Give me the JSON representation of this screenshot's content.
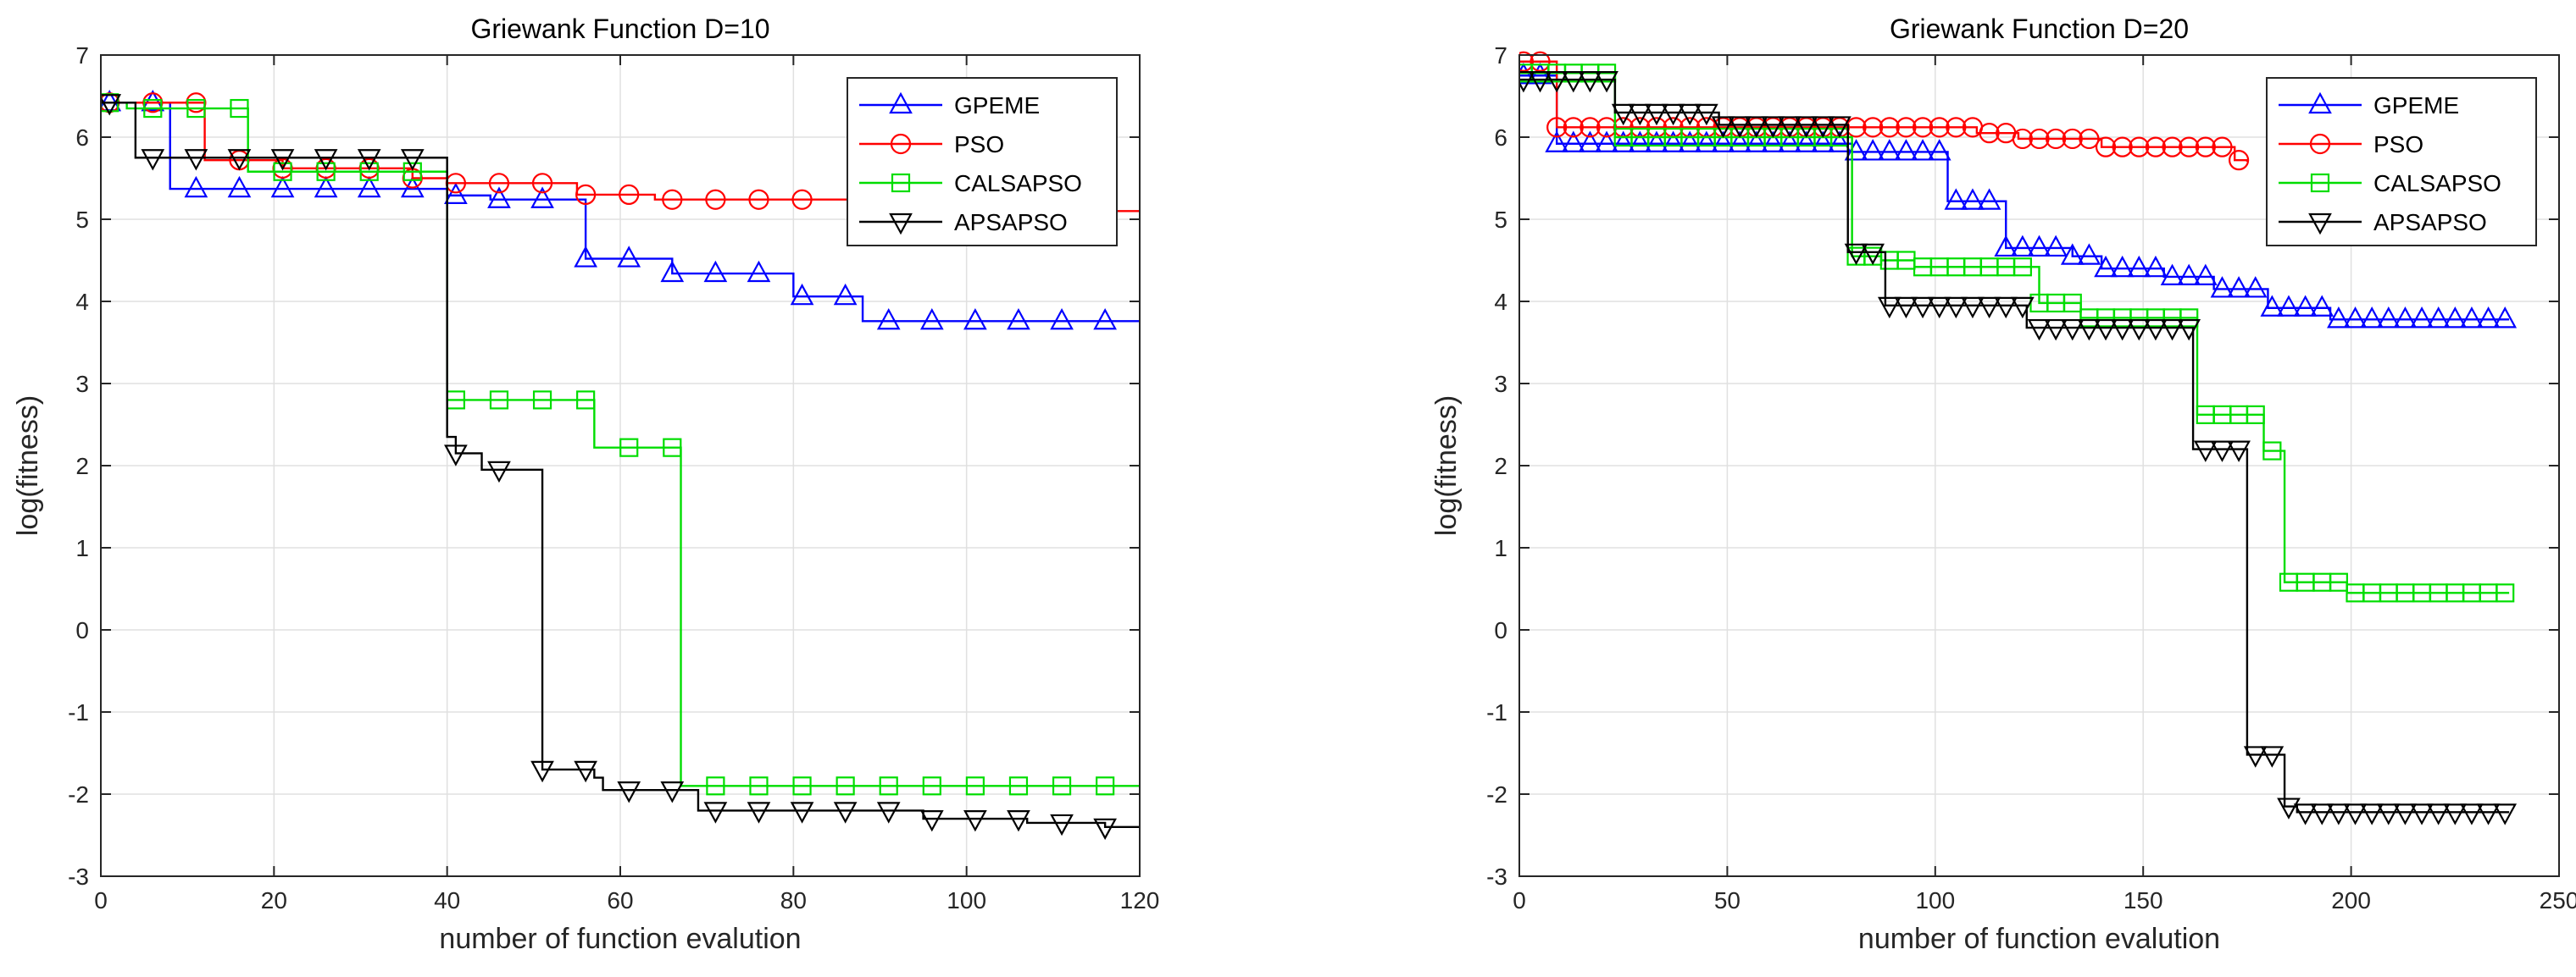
{
  "chart_data": [
    {
      "type": "line",
      "title": "Griewank Function D=10",
      "xlabel": "number of function evalution",
      "ylabel": "log(fitness)",
      "xlim": [
        0,
        120
      ],
      "ylim": [
        -3,
        7
      ],
      "xticks": [
        0,
        20,
        40,
        60,
        80,
        100,
        120
      ],
      "yticks": [
        -3,
        -2,
        -1,
        0,
        1,
        2,
        3,
        4,
        5,
        6,
        7
      ],
      "grid": true,
      "legend": "top-right",
      "series": [
        {
          "name": "GPEME",
          "color": "#0000ff",
          "marker": "triangle-up",
          "steps": [
            [
              0,
              6.42
            ],
            [
              8,
              5.37
            ],
            [
              40,
              5.29
            ],
            [
              45,
              5.24
            ],
            [
              56,
              4.52
            ],
            [
              66,
              4.34
            ],
            [
              80,
              4.06
            ],
            [
              88,
              3.76
            ],
            [
              120,
              3.76
            ]
          ],
          "markers_x": [
            1,
            6,
            11,
            16,
            21,
            26,
            31,
            36,
            41,
            46,
            51,
            56,
            61,
            66,
            71,
            76,
            81,
            86,
            91,
            96,
            101,
            106,
            111,
            116
          ]
        },
        {
          "name": "PSO",
          "color": "#ff0000",
          "marker": "circle",
          "steps": [
            [
              0,
              6.42
            ],
            [
              12,
              5.72
            ],
            [
              21,
              5.62
            ],
            [
              36,
              5.5
            ],
            [
              40,
              5.44
            ],
            [
              55,
              5.3
            ],
            [
              64,
              5.24
            ],
            [
              112,
              5.1
            ],
            [
              120,
              5.1
            ]
          ],
          "markers_x": [
            1,
            6,
            11,
            16,
            21,
            26,
            31,
            36,
            41,
            46,
            51,
            56,
            61,
            66,
            71,
            76,
            81
          ]
        },
        {
          "name": "CALSAPSO",
          "color": "#00dd00",
          "marker": "square",
          "steps": [
            [
              0,
              6.42
            ],
            [
              3,
              6.35
            ],
            [
              17,
              5.58
            ],
            [
              40,
              2.8
            ],
            [
              57,
              2.22
            ],
            [
              67,
              -1.9
            ],
            [
              120,
              -1.9
            ]
          ],
          "markers_x": [
            1,
            6,
            11,
            16,
            21,
            26,
            31,
            36,
            41,
            46,
            51,
            56,
            61,
            66,
            71,
            76,
            81,
            86,
            91,
            96,
            101,
            106,
            111,
            116
          ]
        },
        {
          "name": "APSAPSO",
          "color": "#000000",
          "marker": "triangle-down",
          "steps": [
            [
              0,
              6.42
            ],
            [
              4,
              5.75
            ],
            [
              40,
              2.35
            ],
            [
              41,
              2.15
            ],
            [
              44,
              1.95
            ],
            [
              51,
              -1.7
            ],
            [
              57,
              -1.8
            ],
            [
              58,
              -1.95
            ],
            [
              69,
              -2.2
            ],
            [
              95,
              -2.3
            ],
            [
              107,
              -2.35
            ],
            [
              116,
              -2.4
            ],
            [
              120,
              -2.4
            ]
          ],
          "markers_x": [
            1,
            6,
            11,
            16,
            21,
            26,
            31,
            36,
            41,
            46,
            51,
            56,
            61,
            66,
            71,
            76,
            81,
            86,
            91,
            96,
            101,
            106,
            111,
            116
          ]
        }
      ]
    },
    {
      "type": "line",
      "title": "Griewank Function D=20",
      "xlabel": "number of function evalution",
      "ylabel": "log(fitness)",
      "xlim": [
        0,
        250
      ],
      "ylim": [
        -3,
        7
      ],
      "xticks": [
        0,
        50,
        100,
        150,
        200,
        250
      ],
      "yticks": [
        -3,
        -2,
        -1,
        0,
        1,
        2,
        3,
        4,
        5,
        6,
        7
      ],
      "grid": true,
      "legend": "top-right",
      "series": [
        {
          "name": "GPEME",
          "color": "#0000ff",
          "marker": "triangle-up",
          "steps": [
            [
              0,
              6.75
            ],
            [
              9,
              5.92
            ],
            [
              80,
              5.82
            ],
            [
              103,
              5.22
            ],
            [
              117,
              4.65
            ],
            [
              133,
              4.55
            ],
            [
              140,
              4.4
            ],
            [
              155,
              4.3
            ],
            [
              167,
              4.15
            ],
            [
              180,
              3.92
            ],
            [
              195,
              3.78
            ],
            [
              238,
              3.78
            ]
          ],
          "markers_x": [
            1,
            5,
            9,
            13,
            17,
            21,
            25,
            29,
            33,
            37,
            41,
            45,
            49,
            53,
            57,
            61,
            65,
            69,
            73,
            77,
            81,
            85,
            89,
            93,
            97,
            101,
            105,
            109,
            113,
            117,
            121,
            125,
            129,
            133,
            137,
            141,
            145,
            149,
            153,
            157,
            161,
            165,
            169,
            173,
            177,
            181,
            185,
            189,
            193,
            197,
            201,
            205,
            209,
            213,
            217,
            221,
            225,
            229,
            233,
            237
          ]
        },
        {
          "name": "PSO",
          "color": "#ff0000",
          "marker": "circle",
          "steps": [
            [
              0,
              6.92
            ],
            [
              9,
              6.12
            ],
            [
              90,
              6.12
            ],
            [
              110,
              6.05
            ],
            [
              120,
              5.98
            ],
            [
              140,
              5.88
            ],
            [
              172,
              5.72
            ],
            [
              175,
              5.7
            ]
          ],
          "markers_x": [
            1,
            5,
            9,
            13,
            17,
            21,
            25,
            29,
            33,
            37,
            41,
            45,
            49,
            53,
            57,
            61,
            65,
            69,
            73,
            77,
            81,
            85,
            89,
            93,
            97,
            101,
            105,
            109,
            113,
            117,
            121,
            125,
            129,
            133,
            137,
            141,
            145,
            149,
            153,
            157,
            161,
            165,
            169,
            173
          ]
        },
        {
          "name": "CALSAPSO",
          "color": "#00dd00",
          "marker": "square",
          "steps": [
            [
              0,
              6.78
            ],
            [
              23,
              6.0
            ],
            [
              80,
              4.55
            ],
            [
              87,
              4.5
            ],
            [
              95,
              4.42
            ],
            [
              125,
              3.98
            ],
            [
              135,
              3.8
            ],
            [
              163,
              2.62
            ],
            [
              179,
              2.18
            ],
            [
              184,
              0.58
            ],
            [
              199,
              0.45
            ],
            [
              238,
              0.45
            ]
          ],
          "markers_x": [
            1,
            5,
            9,
            13,
            17,
            21,
            25,
            29,
            33,
            37,
            41,
            45,
            49,
            53,
            57,
            61,
            65,
            69,
            73,
            77,
            81,
            85,
            89,
            93,
            97,
            101,
            105,
            109,
            113,
            117,
            121,
            125,
            129,
            133,
            137,
            141,
            145,
            149,
            153,
            157,
            161,
            165,
            169,
            173,
            177,
            181,
            185,
            189,
            193,
            197,
            201,
            205,
            209,
            213,
            217,
            221,
            225,
            229,
            233,
            237
          ]
        },
        {
          "name": "APSAPSO",
          "color": "#000000",
          "marker": "triangle-down",
          "steps": [
            [
              0,
              6.7
            ],
            [
              23,
              6.3
            ],
            [
              48,
              6.15
            ],
            [
              79,
              4.6
            ],
            [
              88,
              3.95
            ],
            [
              122,
              3.68
            ],
            [
              162,
              2.2
            ],
            [
              175,
              -1.52
            ],
            [
              184,
              -2.15
            ],
            [
              187,
              -2.22
            ],
            [
              238,
              -2.22
            ]
          ],
          "markers_x": [
            1,
            5,
            9,
            13,
            17,
            21,
            25,
            29,
            33,
            37,
            41,
            45,
            49,
            53,
            57,
            61,
            65,
            69,
            73,
            77,
            81,
            85,
            89,
            93,
            97,
            101,
            105,
            109,
            113,
            117,
            121,
            125,
            129,
            133,
            137,
            141,
            145,
            149,
            153,
            157,
            161,
            165,
            169,
            173,
            177,
            181,
            185,
            189,
            193,
            197,
            201,
            205,
            209,
            213,
            217,
            221,
            225,
            229,
            233,
            237
          ]
        }
      ]
    }
  ]
}
